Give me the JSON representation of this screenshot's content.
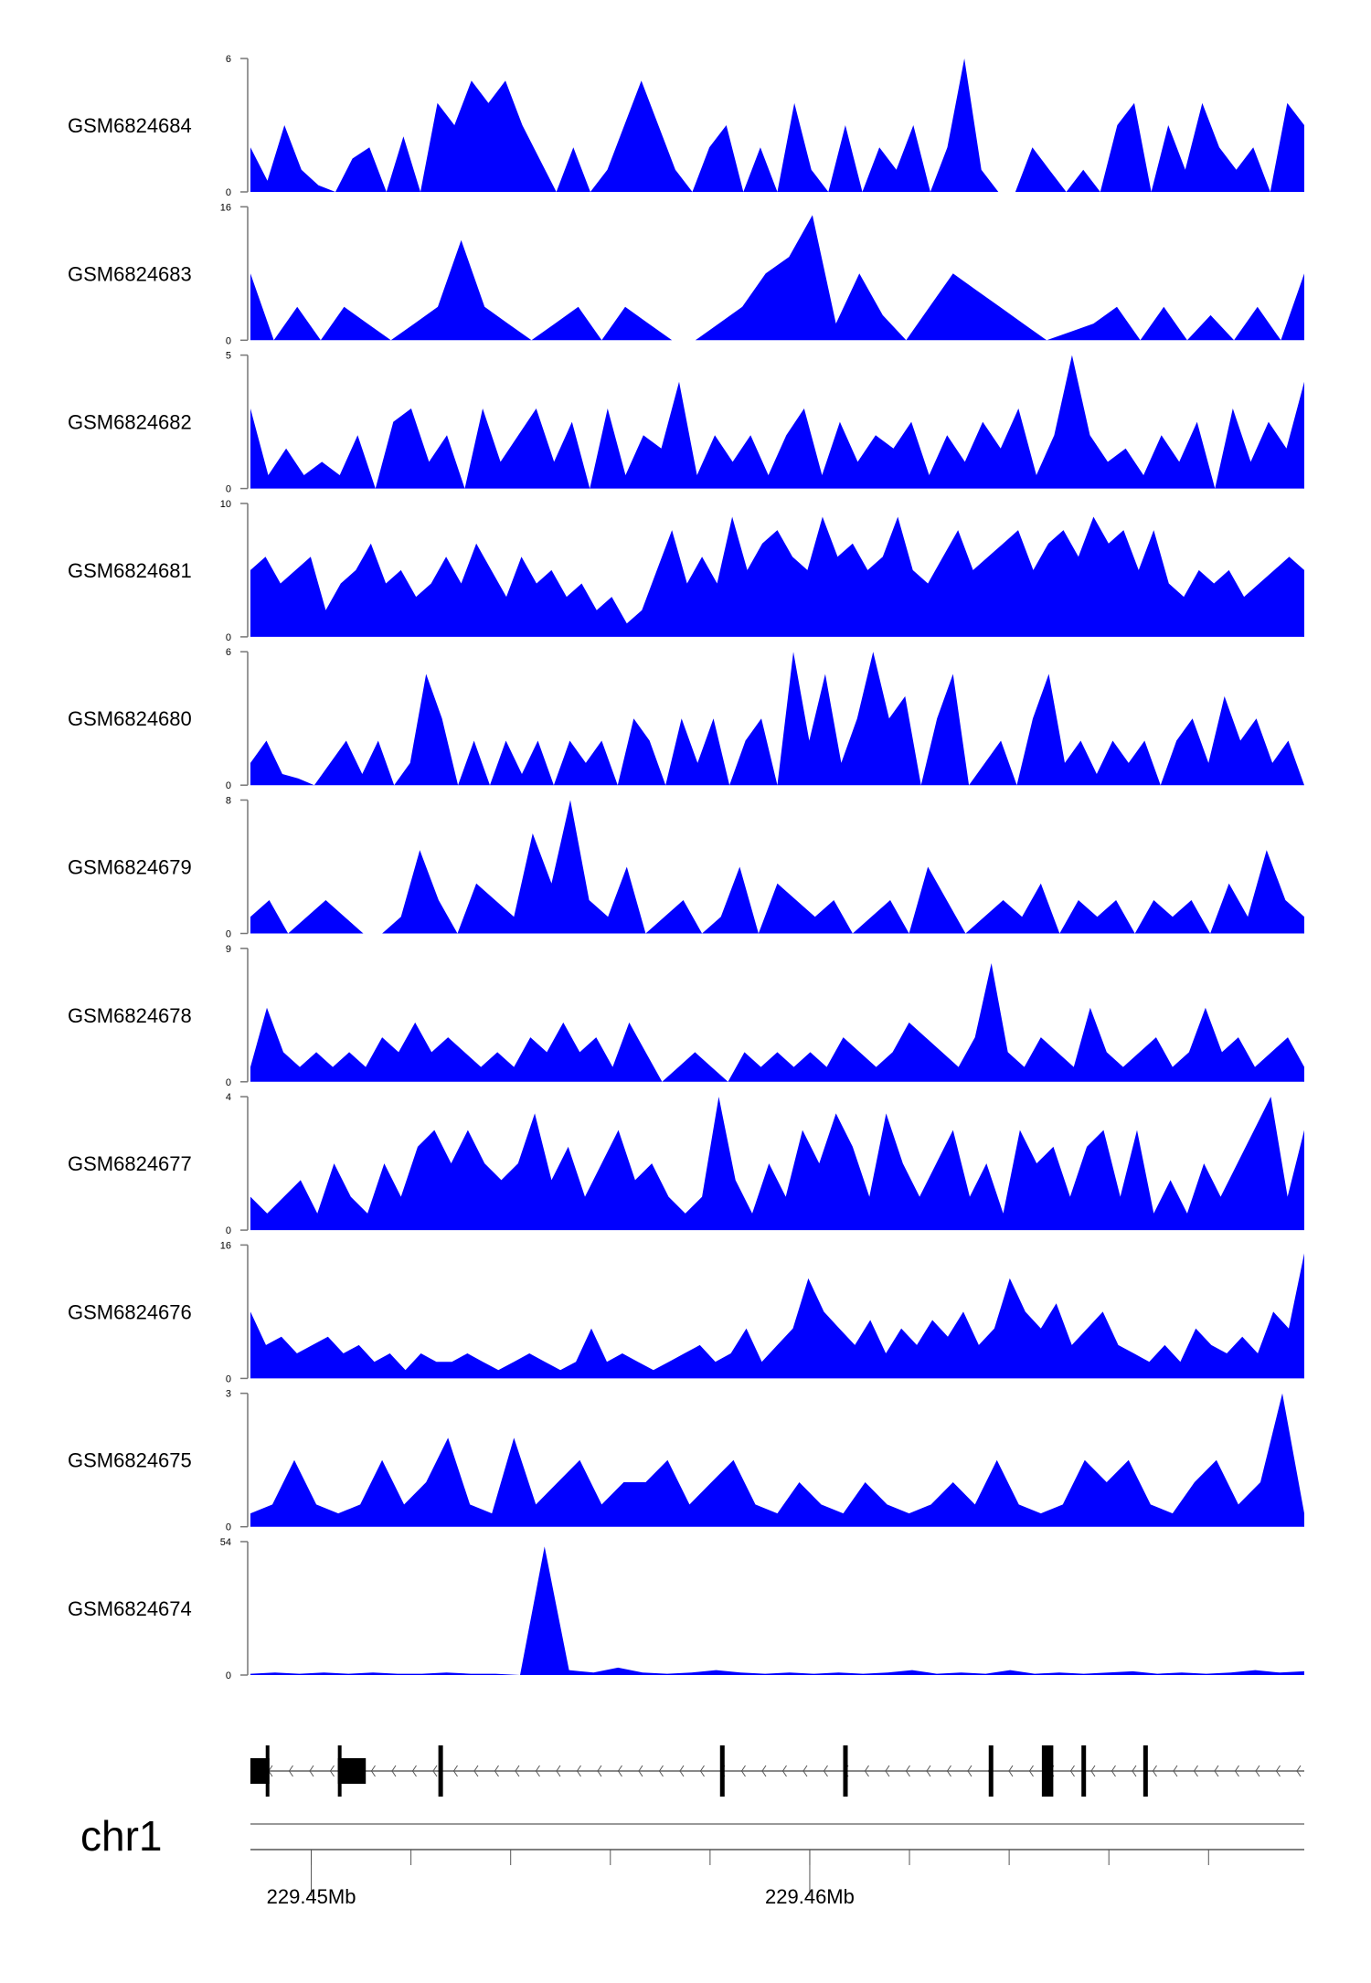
{
  "chart_data": {
    "type": "area",
    "title": "",
    "chromosome": "chr1",
    "xlim_mb": [
      229.44878,
      229.46992
    ],
    "x_ticks_mb": [
      229.45,
      229.452,
      229.454,
      229.456,
      229.458,
      229.46,
      229.462,
      229.464,
      229.466,
      229.468
    ],
    "x_tick_labels": [
      {
        "value": 229.45,
        "label": "229.45Mb"
      },
      {
        "value": 229.46,
        "label": "229.46Mb"
      }
    ],
    "fill_color": "#0000ff",
    "tracks": [
      {
        "name": "GSM6824684",
        "ylim": [
          0,
          6
        ],
        "values": [
          2,
          0.5,
          3,
          1,
          0.3,
          0,
          1.5,
          2,
          0,
          2.5,
          0,
          4,
          3,
          5,
          4,
          5,
          3,
          1.5,
          0,
          2,
          0,
          1,
          3,
          5,
          3,
          1,
          0,
          2,
          3,
          0,
          2,
          0,
          4,
          1,
          0,
          3,
          0,
          2,
          1,
          3,
          0,
          2,
          6,
          1,
          0,
          0,
          2,
          1,
          0,
          1,
          0,
          3,
          4,
          0,
          3,
          1,
          4,
          2,
          1,
          2,
          0,
          4,
          3
        ]
      },
      {
        "name": "GSM6824683",
        "ylim": [
          0,
          16
        ],
        "values": [
          8,
          0,
          4,
          0,
          4,
          2,
          0,
          2,
          4,
          12,
          4,
          2,
          0,
          2,
          4,
          0,
          4,
          2,
          0,
          0,
          2,
          4,
          8,
          10,
          15,
          2,
          8,
          3,
          0,
          4,
          8,
          6,
          4,
          2,
          0,
          1,
          2,
          4,
          0,
          4,
          0,
          3,
          0,
          4,
          0,
          8
        ]
      },
      {
        "name": "GSM6824682",
        "ylim": [
          0,
          5
        ],
        "values": [
          3,
          0.5,
          1.5,
          0.5,
          1,
          0.5,
          2,
          0,
          2.5,
          3,
          1,
          2,
          0,
          3,
          1,
          2,
          3,
          1,
          2.5,
          0,
          3,
          0.5,
          2,
          1.5,
          4,
          0.5,
          2,
          1,
          2,
          0.5,
          2,
          3,
          0.5,
          2.5,
          1,
          2,
          1.5,
          2.5,
          0.5,
          2,
          1,
          2.5,
          1.5,
          3,
          0.5,
          2,
          5,
          2,
          1,
          1.5,
          0.5,
          2,
          1,
          2.5,
          0,
          3,
          1,
          2.5,
          1.5,
          4
        ]
      },
      {
        "name": "GSM6824681",
        "ylim": [
          0,
          10
        ],
        "values": [
          5,
          6,
          4,
          5,
          6,
          2,
          4,
          5,
          7,
          4,
          5,
          3,
          4,
          6,
          4,
          7,
          5,
          3,
          6,
          4,
          5,
          3,
          4,
          2,
          3,
          1,
          2,
          5,
          8,
          4,
          6,
          4,
          9,
          5,
          7,
          8,
          6,
          5,
          9,
          6,
          7,
          5,
          6,
          9,
          5,
          4,
          6,
          8,
          5,
          6,
          7,
          8,
          5,
          7,
          8,
          6,
          9,
          7,
          8,
          5,
          8,
          4,
          3,
          5,
          4,
          5,
          3,
          4,
          5,
          6,
          5
        ]
      },
      {
        "name": "GSM6824680",
        "ylim": [
          0,
          6
        ],
        "values": [
          1,
          2,
          0.5,
          0.3,
          0,
          1,
          2,
          0.5,
          2,
          0,
          1,
          5,
          3,
          0,
          2,
          0,
          2,
          0.5,
          2,
          0,
          2,
          1,
          2,
          0,
          3,
          2,
          0,
          3,
          1,
          3,
          0,
          2,
          3,
          0,
          6,
          2,
          5,
          1,
          3,
          6,
          3,
          4,
          0,
          3,
          5,
          0,
          1,
          2,
          0,
          3,
          5,
          1,
          2,
          0.5,
          2,
          1,
          2,
          0,
          2,
          3,
          1,
          4,
          2,
          3,
          1,
          2,
          0
        ]
      },
      {
        "name": "GSM6824679",
        "ylim": [
          0,
          8
        ],
        "values": [
          1,
          2,
          0,
          1,
          2,
          1,
          0,
          0,
          1,
          5,
          2,
          0,
          3,
          2,
          1,
          6,
          3,
          8,
          2,
          1,
          4,
          0,
          1,
          2,
          0,
          1,
          4,
          0,
          3,
          2,
          1,
          2,
          0,
          1,
          2,
          0,
          4,
          2,
          0,
          1,
          2,
          1,
          3,
          0,
          2,
          1,
          2,
          0,
          2,
          1,
          2,
          0,
          3,
          1,
          5,
          2,
          1
        ]
      },
      {
        "name": "GSM6824678",
        "ylim": [
          0,
          9
        ],
        "values": [
          1,
          5,
          2,
          1,
          2,
          1,
          2,
          1,
          3,
          2,
          4,
          2,
          3,
          2,
          1,
          2,
          1,
          3,
          2,
          4,
          2,
          3,
          1,
          4,
          2,
          0,
          1,
          2,
          1,
          0,
          2,
          1,
          2,
          1,
          2,
          1,
          3,
          2,
          1,
          2,
          4,
          3,
          2,
          1,
          3,
          8,
          2,
          1,
          3,
          2,
          1,
          5,
          2,
          1,
          2,
          3,
          1,
          2,
          5,
          2,
          3,
          1,
          2,
          3,
          1
        ]
      },
      {
        "name": "GSM6824677",
        "ylim": [
          0,
          4
        ],
        "values": [
          1,
          0.5,
          1,
          1.5,
          0.5,
          2,
          1,
          0.5,
          2,
          1,
          2.5,
          3,
          2,
          3,
          2,
          1.5,
          2,
          3.5,
          1.5,
          2.5,
          1,
          2,
          3,
          1.5,
          2,
          1,
          0.5,
          1,
          4,
          1.5,
          0.5,
          2,
          1,
          3,
          2,
          3.5,
          2.5,
          1,
          3.5,
          2,
          1,
          2,
          3,
          1,
          2,
          0.5,
          3,
          2,
          2.5,
          1,
          2.5,
          3,
          1,
          3,
          0.5,
          1.5,
          0.5,
          2,
          1,
          2,
          3,
          4,
          1,
          3
        ]
      },
      {
        "name": "GSM6824676",
        "ylim": [
          0,
          16
        ],
        "values": [
          8,
          4,
          5,
          3,
          4,
          5,
          3,
          4,
          2,
          3,
          1,
          3,
          2,
          2,
          3,
          2,
          1,
          2,
          3,
          2,
          1,
          2,
          6,
          2,
          3,
          2,
          1,
          2,
          3,
          4,
          2,
          3,
          6,
          2,
          4,
          6,
          12,
          8,
          6,
          4,
          7,
          3,
          6,
          4,
          7,
          5,
          8,
          4,
          6,
          12,
          8,
          6,
          9,
          4,
          6,
          8,
          4,
          3,
          2,
          4,
          2,
          6,
          4,
          3,
          5,
          3,
          8,
          6,
          15
        ]
      },
      {
        "name": "GSM6824675",
        "ylim": [
          0,
          3
        ],
        "values": [
          0.3,
          0.5,
          1.5,
          0.5,
          0.3,
          0.5,
          1.5,
          0.5,
          1,
          2,
          0.5,
          0.3,
          2,
          0.5,
          1,
          1.5,
          0.5,
          1,
          1,
          1.5,
          0.5,
          1,
          1.5,
          0.5,
          0.3,
          1,
          0.5,
          0.3,
          1,
          0.5,
          0.3,
          0.5,
          1,
          0.5,
          1.5,
          0.5,
          0.3,
          0.5,
          1.5,
          1,
          1.5,
          0.5,
          0.3,
          1,
          1.5,
          0.5,
          1,
          3,
          0.3
        ]
      },
      {
        "name": "GSM6824674",
        "ylim": [
          0,
          54
        ],
        "values": [
          0.5,
          1,
          0.5,
          1,
          0.5,
          1,
          0.5,
          0.5,
          1,
          0.5,
          0.5,
          0,
          52,
          2,
          1,
          3,
          1,
          0.5,
          1,
          2,
          1,
          0.5,
          1,
          0.5,
          1,
          0.5,
          1,
          2,
          0.5,
          1,
          0.5,
          2,
          0.5,
          1,
          0.5,
          1,
          1.5,
          0.5,
          1,
          0.5,
          1,
          2,
          1,
          1.5
        ]
      }
    ],
    "gene_exons_mb": [
      [
        229.448779,
        229.44916
      ],
      [
        229.450534,
        229.451094
      ],
      [
        229.45255,
        229.45262
      ],
      [
        229.4582,
        229.45826
      ],
      [
        229.46067,
        229.46073
      ],
      [
        229.46359,
        229.46365
      ],
      [
        229.464656,
        229.464885
      ],
      [
        229.46545,
        229.46551
      ],
      [
        229.46669,
        229.46675
      ]
    ],
    "gene_strand": "-"
  }
}
